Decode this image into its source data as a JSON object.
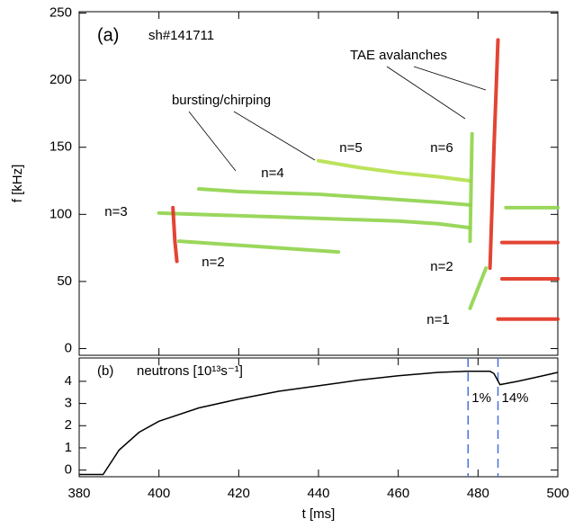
{
  "chart_data": [
    {
      "type": "spectrogram",
      "title": "(a)",
      "subtitle": "sh#141711",
      "ylabel": "f [kHz]",
      "xlim": [
        380,
        500
      ],
      "ylim": [
        -5,
        251
      ],
      "xticks": [
        380,
        400,
        420,
        440,
        460,
        480,
        500
      ],
      "yticks": [
        0,
        50,
        100,
        150,
        200,
        250
      ],
      "annotations": [
        "TAE avalanches",
        "bursting/chirping",
        "n=3",
        "n=4",
        "n=5",
        "n=6",
        "n=2",
        "n=2",
        "n=1"
      ],
      "series": [
        {
          "color": "#8fd34a",
          "x": [
            410,
            420,
            430,
            440,
            450,
            460,
            470,
            478
          ],
          "values": [
            119,
            117,
            116,
            115,
            113,
            111,
            109,
            107
          ]
        },
        {
          "color": "#8fd34a",
          "x": [
            400,
            410,
            420,
            430,
            440,
            450,
            460,
            470,
            478
          ],
          "values": [
            101,
            100,
            99,
            98,
            97,
            96,
            95,
            93,
            90
          ]
        },
        {
          "color": "#b5e04a",
          "x": [
            440,
            450,
            460,
            470,
            478
          ],
          "values": [
            140,
            135,
            131,
            128,
            125
          ]
        },
        {
          "color": "#8fd34a",
          "x": [
            405,
            415,
            425,
            435,
            445
          ],
          "values": [
            80,
            78,
            76,
            74,
            72
          ]
        },
        {
          "color": "#e0301e",
          "x": [
            403.5,
            404,
            404.5
          ],
          "values": [
            105,
            80,
            65
          ]
        },
        {
          "color": "#e0301e",
          "x": [
            483,
            484,
            485
          ],
          "values": [
            60,
            150,
            230
          ]
        },
        {
          "color": "#8fd34a",
          "x": [
            478,
            478.5
          ],
          "values": [
            80,
            160
          ]
        },
        {
          "color": "#e0301e",
          "x": [
            486,
            500
          ],
          "values": [
            79,
            79
          ]
        },
        {
          "color": "#e0301e",
          "x": [
            486,
            500
          ],
          "values": [
            52,
            52
          ]
        },
        {
          "color": "#e0301e",
          "x": [
            485,
            500
          ],
          "values": [
            22,
            22
          ]
        },
        {
          "color": "#8fd34a",
          "x": [
            487,
            500
          ],
          "values": [
            105,
            105
          ]
        },
        {
          "color": "#8fd34a",
          "x": [
            478,
            482
          ],
          "values": [
            30,
            60
          ]
        }
      ]
    },
    {
      "type": "line",
      "title": "(b)",
      "label": "neutrons [10¹³s⁻¹]",
      "xlabel": "t [ms]",
      "xlim": [
        380,
        500
      ],
      "ylim": [
        -0.3,
        5.05
      ],
      "xticks": [
        380,
        400,
        420,
        440,
        460,
        480,
        500
      ],
      "yticks": [
        0,
        1,
        2,
        3,
        4
      ],
      "color": "#000000",
      "x": [
        380,
        386,
        390,
        395,
        400,
        410,
        420,
        430,
        440,
        450,
        460,
        470,
        477,
        483,
        484,
        485.5,
        490,
        495,
        500
      ],
      "values": [
        -0.2,
        -0.2,
        0.9,
        1.7,
        2.2,
        2.8,
        3.2,
        3.55,
        3.8,
        4.05,
        4.25,
        4.4,
        4.45,
        4.45,
        4.35,
        3.85,
        4.0,
        4.2,
        4.4
      ],
      "markers": [
        {
          "x": 477.5,
          "label": "1%"
        },
        {
          "x": 485,
          "label": "14%"
        }
      ],
      "marker_color": "#4a6fdc"
    }
  ]
}
